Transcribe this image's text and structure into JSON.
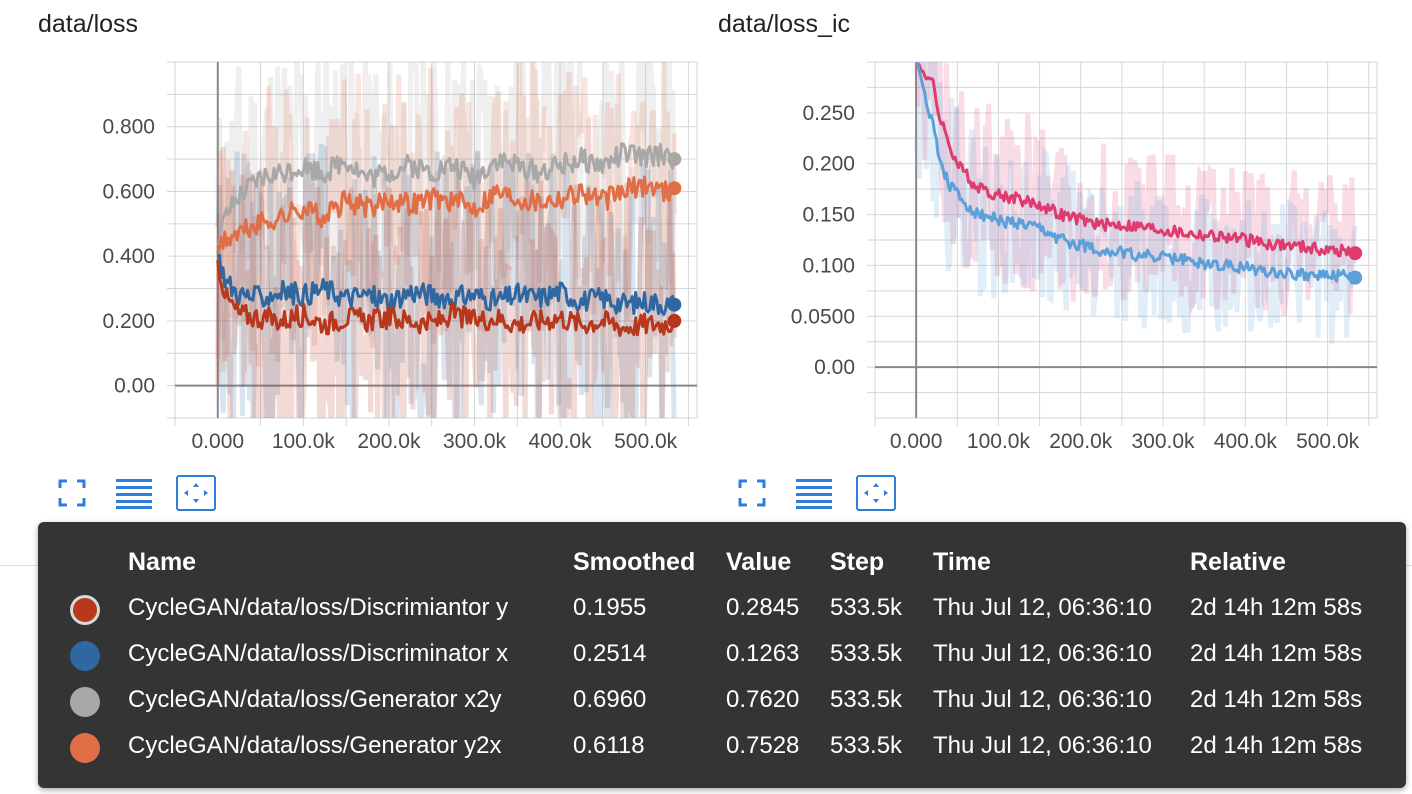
{
  "colors": {
    "disc_y": "#b7381c",
    "disc_x": "#2f68a0",
    "gen_x2y": "#a8a8a8",
    "gen_y2x": "#e06f47",
    "ic_pink": "#df3b6e",
    "ic_blue": "#5ba0d8",
    "axis": "#888888",
    "grid": "#d6d6d6",
    "accent": "#2f7ed8",
    "tooltip_bg": "#343434"
  },
  "toolbar": {
    "fullscreen_icon": "fullscreen-icon",
    "data_table_icon": "list-icon",
    "fit_domain_icon": "fit-domain-icon"
  },
  "chart_data": [
    {
      "type": "line",
      "title": "data/loss",
      "xlabel": "",
      "ylabel": "",
      "xlim": [
        -50000,
        560000
      ],
      "ylim": [
        -0.1,
        1.0
      ],
      "x_ticks": [
        "0.000",
        "100.0k",
        "200.0k",
        "300.0k",
        "400.0k",
        "500.0k"
      ],
      "y_ticks": [
        "0.00",
        "0.200",
        "0.400",
        "0.600",
        "0.800"
      ],
      "grid": true,
      "legend": "none",
      "series": [
        {
          "name": "CycleGAN/data/loss/Generator x2y",
          "color": "#a8a8a8",
          "x": [
            0,
            10000,
            25000,
            50000,
            75000,
            100000,
            125000,
            150000,
            175000,
            200000,
            225000,
            250000,
            275000,
            300000,
            325000,
            350000,
            375000,
            400000,
            425000,
            450000,
            475000,
            500000,
            525000,
            533500
          ],
          "y": [
            0.45,
            0.52,
            0.58,
            0.64,
            0.66,
            0.68,
            0.66,
            0.7,
            0.64,
            0.66,
            0.68,
            0.66,
            0.68,
            0.64,
            0.7,
            0.68,
            0.66,
            0.68,
            0.7,
            0.68,
            0.72,
            0.7,
            0.72,
            0.7
          ]
        },
        {
          "name": "CycleGAN/data/loss/Generator y2x",
          "color": "#e06f47",
          "x": [
            0,
            10000,
            25000,
            50000,
            75000,
            100000,
            125000,
            150000,
            175000,
            200000,
            225000,
            250000,
            275000,
            300000,
            325000,
            350000,
            375000,
            400000,
            425000,
            450000,
            475000,
            500000,
            525000,
            533500
          ],
          "y": [
            0.42,
            0.45,
            0.47,
            0.5,
            0.52,
            0.55,
            0.52,
            0.57,
            0.55,
            0.58,
            0.56,
            0.58,
            0.57,
            0.55,
            0.6,
            0.58,
            0.57,
            0.58,
            0.6,
            0.57,
            0.6,
            0.62,
            0.6,
            0.61
          ]
        },
        {
          "name": "CycleGAN/data/loss/Discriminator x",
          "color": "#2f68a0",
          "x": [
            0,
            10000,
            25000,
            50000,
            75000,
            100000,
            125000,
            150000,
            175000,
            200000,
            225000,
            250000,
            275000,
            300000,
            325000,
            350000,
            375000,
            400000,
            425000,
            450000,
            475000,
            500000,
            525000,
            533500
          ],
          "y": [
            0.4,
            0.32,
            0.28,
            0.27,
            0.29,
            0.28,
            0.3,
            0.27,
            0.28,
            0.26,
            0.29,
            0.28,
            0.27,
            0.28,
            0.26,
            0.28,
            0.27,
            0.29,
            0.26,
            0.27,
            0.25,
            0.26,
            0.25,
            0.25
          ]
        },
        {
          "name": "CycleGAN/data/loss/Discrimiantor y",
          "color": "#b7381c",
          "x": [
            0,
            10000,
            25000,
            50000,
            75000,
            100000,
            125000,
            150000,
            175000,
            200000,
            225000,
            250000,
            275000,
            300000,
            325000,
            350000,
            375000,
            400000,
            425000,
            450000,
            475000,
            500000,
            525000,
            533500
          ],
          "y": [
            0.38,
            0.27,
            0.22,
            0.21,
            0.2,
            0.22,
            0.19,
            0.21,
            0.2,
            0.21,
            0.2,
            0.19,
            0.22,
            0.2,
            0.21,
            0.19,
            0.2,
            0.21,
            0.19,
            0.2,
            0.18,
            0.19,
            0.19,
            0.2
          ]
        }
      ]
    },
    {
      "type": "line",
      "title": "data/loss_ic",
      "xlabel": "",
      "ylabel": "",
      "xlim": [
        -50000,
        560000
      ],
      "ylim": [
        -0.05,
        0.3
      ],
      "x_ticks": [
        "0.000",
        "100.0k",
        "200.0k",
        "300.0k",
        "400.0k",
        "500.0k"
      ],
      "y_ticks": [
        "0.00",
        "0.0500",
        "0.100",
        "0.150",
        "0.200",
        "0.250"
      ],
      "grid": true,
      "legend": "none",
      "series": [
        {
          "name": "",
          "color": "#df3b6e",
          "x": [
            0,
            10000,
            20000,
            30000,
            40000,
            50000,
            60000,
            75000,
            100000,
            125000,
            150000,
            175000,
            200000,
            225000,
            250000,
            275000,
            300000,
            325000,
            350000,
            375000,
            400000,
            425000,
            450000,
            475000,
            500000,
            525000,
            533500
          ],
          "y": [
            0.3,
            0.29,
            0.28,
            0.24,
            0.22,
            0.2,
            0.19,
            0.175,
            0.17,
            0.165,
            0.16,
            0.15,
            0.145,
            0.14,
            0.14,
            0.138,
            0.135,
            0.132,
            0.13,
            0.128,
            0.125,
            0.122,
            0.12,
            0.118,
            0.115,
            0.114,
            0.112
          ]
        },
        {
          "name": "",
          "color": "#5ba0d8",
          "x": [
            0,
            10000,
            20000,
            30000,
            40000,
            50000,
            60000,
            75000,
            100000,
            125000,
            150000,
            175000,
            200000,
            225000,
            250000,
            275000,
            300000,
            325000,
            350000,
            375000,
            400000,
            425000,
            450000,
            475000,
            500000,
            525000,
            533500
          ],
          "y": [
            0.3,
            0.27,
            0.24,
            0.2,
            0.18,
            0.17,
            0.16,
            0.15,
            0.145,
            0.14,
            0.135,
            0.125,
            0.12,
            0.115,
            0.112,
            0.11,
            0.108,
            0.105,
            0.102,
            0.1,
            0.098,
            0.095,
            0.093,
            0.091,
            0.09,
            0.089,
            0.088
          ]
        }
      ]
    }
  ],
  "tooltip": {
    "headers": {
      "name": "Name",
      "smoothed": "Smoothed",
      "value": "Value",
      "step": "Step",
      "time": "Time",
      "relative": "Relative"
    },
    "rows": [
      {
        "color": "#b7381c",
        "selected": true,
        "name": "CycleGAN/data/loss/Discrimiantor y",
        "smoothed": "0.1955",
        "value": "0.2845",
        "step": "533.5k",
        "time": "Thu Jul 12, 06:36:10",
        "relative": "2d 14h 12m 58s"
      },
      {
        "color": "#2f68a0",
        "selected": false,
        "name": "CycleGAN/data/loss/Discriminator x",
        "smoothed": "0.2514",
        "value": "0.1263",
        "step": "533.5k",
        "time": "Thu Jul 12, 06:36:10",
        "relative": "2d 14h 12m 58s"
      },
      {
        "color": "#a8a8a8",
        "selected": false,
        "name": "CycleGAN/data/loss/Generator x2y",
        "smoothed": "0.6960",
        "value": "0.7620",
        "step": "533.5k",
        "time": "Thu Jul 12, 06:36:10",
        "relative": "2d 14h 12m 58s"
      },
      {
        "color": "#e06f47",
        "selected": false,
        "name": "CycleGAN/data/loss/Generator y2x",
        "smoothed": "0.6118",
        "value": "0.7528",
        "step": "533.5k",
        "time": "Thu Jul 12, 06:36:10",
        "relative": "2d 14h 12m 58s"
      }
    ]
  }
}
